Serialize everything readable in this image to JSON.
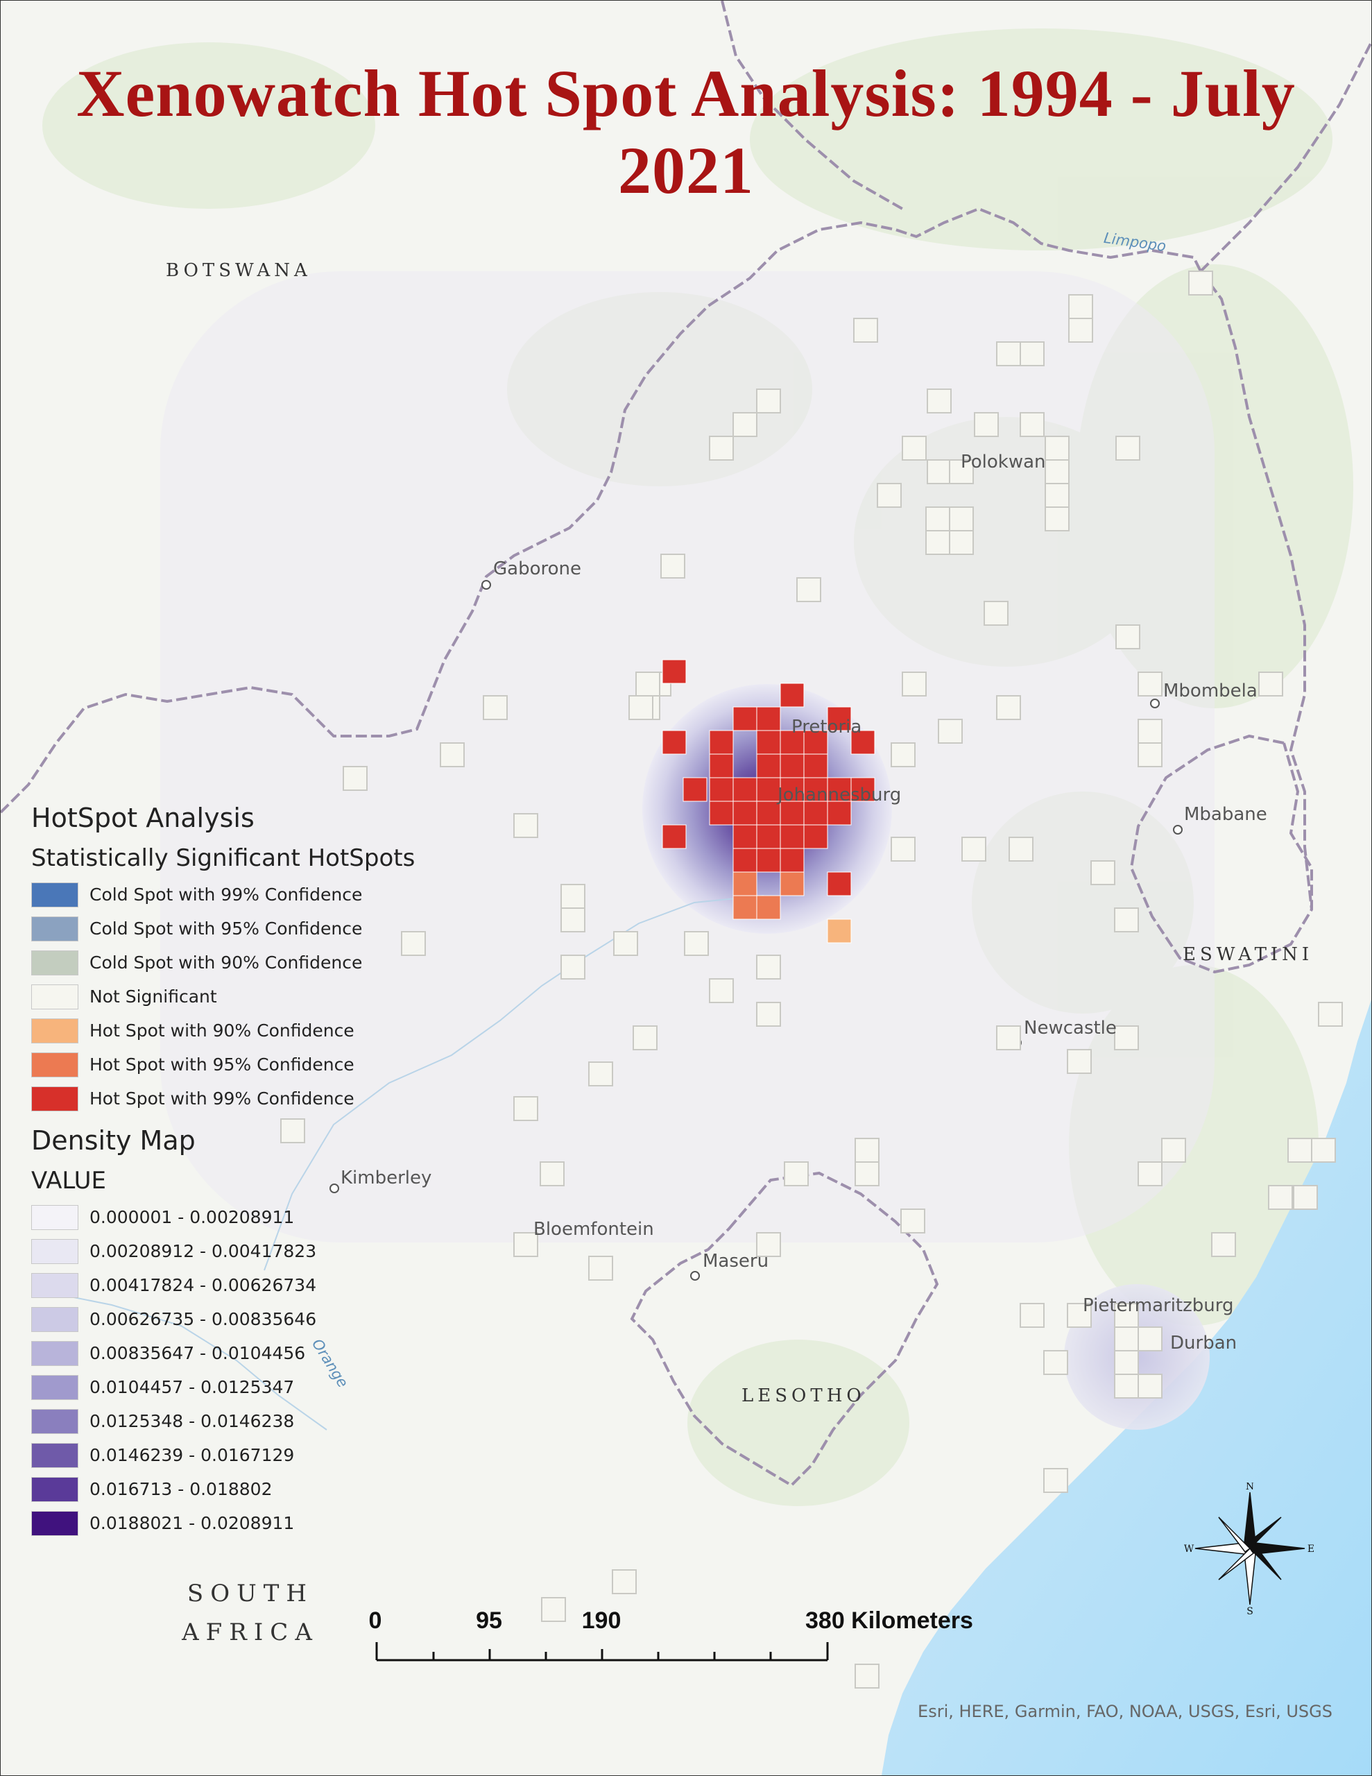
{
  "title": "Xenowatch Hot Spot Analysis: 1994 - July 2021",
  "countries": {
    "botswana": "BOTSWANA",
    "eswatini": "ESWATINI",
    "lesotho": "LESOTHO",
    "south_africa_line1": "SOUTH",
    "south_africa_line2": "AFRICA"
  },
  "cities": {
    "gaborone": "Gaborone",
    "polokwane": "Polokwan",
    "pretoria": "Pretoria",
    "johannesburg": "Johannesburg",
    "mbombela": "Mbombela",
    "mbabane": "Mbabane",
    "newcastle": "Newcastle",
    "kimberley": "Kimberley",
    "bloemfontein": "Bloemfontein",
    "maseru": "Maseru",
    "pietermaritzburg": "Pietermaritzburg",
    "durban": "Durban"
  },
  "rivers": {
    "limpopo": "Limpopo",
    "orange": "Orange"
  },
  "legend": {
    "heading": "HotSpot Analysis",
    "hotspot_subheading": "Statistically Significant HotSpots",
    "hotspot_classes": [
      {
        "label": "Cold Spot with 99% Confidence",
        "color": "#4a77b8"
      },
      {
        "label": "Cold Spot with 95% Confidence",
        "color": "#8ba2c0"
      },
      {
        "label": "Cold Spot with 90% Confidence",
        "color": "#c3cdbf"
      },
      {
        "label": "Not Significant",
        "color": "#f6f6f0"
      },
      {
        "label": "Hot Spot with 90% Confidence",
        "color": "#f7b47c"
      },
      {
        "label": "Hot Spot with 95% Confidence",
        "color": "#ec7a52"
      },
      {
        "label": "Hot Spot with 99% Confidence",
        "color": "#d7302a"
      }
    ],
    "density_heading": "Density Map",
    "density_subheading": "VALUE",
    "density_classes": [
      {
        "label": "0.000001 - 0.00208911",
        "color": "#f4f3f8"
      },
      {
        "label": "0.00208912 - 0.00417823",
        "color": "#e9e8f3"
      },
      {
        "label": "0.00417824 - 0.00626734",
        "color": "#dcdaed"
      },
      {
        "label": "0.00626735 - 0.00835646",
        "color": "#cccae5"
      },
      {
        "label": "0.00835647 - 0.0104456",
        "color": "#b8b4da"
      },
      {
        "label": "0.0104457 - 0.0125347",
        "color": "#a09acd"
      },
      {
        "label": "0.0125348 - 0.0146238",
        "color": "#8a7fbe"
      },
      {
        "label": "0.0146239 - 0.0167129",
        "color": "#6f5aa9"
      },
      {
        "label": "0.016713 - 0.018802",
        "color": "#5a3a99"
      },
      {
        "label": "0.0188021 - 0.0208911",
        "color": "#40127e"
      }
    ]
  },
  "scale_bar": {
    "ticks": [
      "0",
      "95",
      "190",
      "380 Kilometers"
    ]
  },
  "north_arrow": {
    "n": "N",
    "e": "E",
    "s": "S",
    "w": "W"
  },
  "attribution": "Esri, HERE, Garmin, FAO, NOAA, USGS, Esri, USGS"
}
